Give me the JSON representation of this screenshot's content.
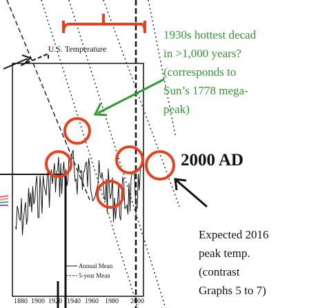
{
  "chart": {
    "title": "U.S. Temperature",
    "legend": [
      "Annual Mean",
      "5-year Mean"
    ],
    "xticks": [
      "1880",
      "1900",
      "1920",
      "1940",
      "1960",
      "1980",
      "2000"
    ]
  },
  "annotations": {
    "hottest": [
      "1930s hottest decad",
      "in >1,000 years?",
      "(corresponds to",
      "Sun’s 1778 mega-",
      "peak)"
    ],
    "year": "2000 AD",
    "expected": [
      "Expected 2016",
      "peak temp.",
      "(contrast",
      "Graphs 5 to 7)"
    ]
  }
}
